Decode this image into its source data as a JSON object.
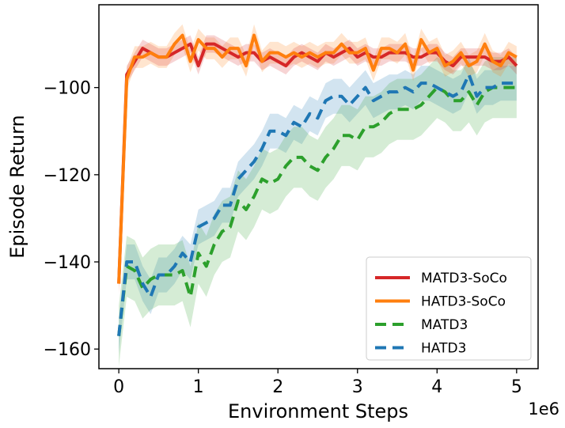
{
  "chart_data": {
    "type": "line",
    "title": "",
    "xlabel": "Environment Steps",
    "ylabel": "Episode Return",
    "x_offset_label": "1e6",
    "xlim": [
      -0.25,
      5.27
    ],
    "ylim": [
      -164.5,
      -81
    ],
    "xticks": [
      0,
      1,
      2,
      3,
      4,
      5
    ],
    "xtick_labels": [
      "0",
      "1",
      "2",
      "3",
      "4",
      "5"
    ],
    "yticks": [
      -160,
      -140,
      -120,
      -100
    ],
    "ytick_labels": [
      "−160",
      "−140",
      "−120",
      "−100"
    ],
    "grid": false,
    "legend_position": "lower-right",
    "series": [
      {
        "name": "MATD3-SoCo",
        "color": "#d62728",
        "style": "solid",
        "x": [
          0,
          0.1,
          0.2,
          0.3,
          0.4,
          0.5,
          0.6,
          0.7,
          0.8,
          0.9,
          1.0,
          1.1,
          1.2,
          1.3,
          1.4,
          1.5,
          1.6,
          1.7,
          1.8,
          1.9,
          2.0,
          2.1,
          2.2,
          2.3,
          2.4,
          2.5,
          2.6,
          2.7,
          2.8,
          2.9,
          3.0,
          3.1,
          3.2,
          3.3,
          3.4,
          3.5,
          3.6,
          3.7,
          3.8,
          3.9,
          4.0,
          4.1,
          4.2,
          4.3,
          4.4,
          4.5,
          4.6,
          4.7,
          4.8,
          4.9,
          5.0
        ],
        "y": [
          -145,
          -97,
          -94,
          -91,
          -92,
          -93,
          -93,
          -92,
          -91,
          -90,
          -95,
          -90,
          -90,
          -91,
          -92,
          -93,
          -92,
          -92,
          -94,
          -93,
          -94,
          -95,
          -93,
          -92,
          -93,
          -94,
          -92,
          -93,
          -92,
          -91,
          -93,
          -92,
          -93,
          -93,
          -92,
          -92,
          -92,
          -93,
          -93,
          -92,
          -92,
          -94,
          -95,
          -93,
          -93,
          -93,
          -93,
          -94,
          -94,
          -93,
          -95
        ],
        "band": 2.0
      },
      {
        "name": "HATD3-SoCo",
        "color": "#ff7f0e",
        "style": "solid",
        "x": [
          0,
          0.1,
          0.2,
          0.3,
          0.4,
          0.5,
          0.6,
          0.7,
          0.8,
          0.9,
          1.0,
          1.1,
          1.2,
          1.3,
          1.4,
          1.5,
          1.6,
          1.7,
          1.8,
          1.9,
          2.0,
          2.1,
          2.2,
          2.3,
          2.4,
          2.5,
          2.6,
          2.7,
          2.8,
          2.9,
          3.0,
          3.1,
          3.2,
          3.3,
          3.4,
          3.5,
          3.6,
          3.7,
          3.8,
          3.9,
          4.0,
          4.1,
          4.2,
          4.3,
          4.4,
          4.5,
          4.6,
          4.7,
          4.8,
          4.9,
          5.0
        ],
        "y": [
          -145,
          -98,
          -93,
          -93,
          -92,
          -93,
          -93,
          -90,
          -88,
          -94,
          -89,
          -91,
          -91,
          -93,
          -91,
          -91,
          -95,
          -88,
          -94,
          -92,
          -92,
          -93,
          -92,
          -93,
          -92,
          -93,
          -92,
          -92,
          -90,
          -92,
          -92,
          -91,
          -96,
          -91,
          -91,
          -92,
          -90,
          -96,
          -89,
          -92,
          -91,
          -95,
          -94,
          -92,
          -95,
          -94,
          -90,
          -94,
          -95,
          -92,
          -93
        ],
        "band": 2.5
      },
      {
        "name": "MATD3",
        "color": "#2ca02c",
        "style": "dashed",
        "x": [
          0,
          0.1,
          0.2,
          0.3,
          0.4,
          0.5,
          0.6,
          0.7,
          0.8,
          0.9,
          1.0,
          1.1,
          1.2,
          1.3,
          1.4,
          1.5,
          1.6,
          1.7,
          1.8,
          1.9,
          2.0,
          2.1,
          2.2,
          2.3,
          2.4,
          2.5,
          2.6,
          2.7,
          2.8,
          2.9,
          3.0,
          3.1,
          3.2,
          3.3,
          3.4,
          3.5,
          3.6,
          3.7,
          3.8,
          3.9,
          4.0,
          4.1,
          4.2,
          4.3,
          4.4,
          4.5,
          4.6,
          4.7,
          4.8,
          4.9,
          5.0
        ],
        "y": [
          -157,
          -141,
          -142,
          -146,
          -144,
          -143,
          -143,
          -143,
          -142,
          -148,
          -138,
          -141,
          -136,
          -133,
          -132,
          -126,
          -128,
          -125,
          -121,
          -122,
          -121,
          -118,
          -116,
          -116,
          -118,
          -119,
          -116,
          -114,
          -111,
          -111,
          -112,
          -109,
          -109,
          -108,
          -106,
          -105,
          -105,
          -105,
          -104,
          -102,
          -100,
          -101,
          -103,
          -103,
          -101,
          -104,
          -101,
          -100,
          -100,
          -100,
          -100
        ],
        "band": 7
      },
      {
        "name": "HATD3",
        "color": "#1f77b4",
        "style": "dashed",
        "x": [
          0,
          0.1,
          0.2,
          0.3,
          0.4,
          0.5,
          0.6,
          0.7,
          0.8,
          0.9,
          1.0,
          1.1,
          1.2,
          1.3,
          1.4,
          1.5,
          1.6,
          1.7,
          1.8,
          1.9,
          2.0,
          2.1,
          2.2,
          2.3,
          2.4,
          2.5,
          2.6,
          2.7,
          2.8,
          2.9,
          3.0,
          3.1,
          3.2,
          3.3,
          3.4,
          3.5,
          3.6,
          3.7,
          3.8,
          3.9,
          4.0,
          4.1,
          4.2,
          4.3,
          4.4,
          4.5,
          4.6,
          4.7,
          4.8,
          4.9,
          5.0
        ],
        "y": [
          -157,
          -140,
          -140,
          -145,
          -148,
          -143,
          -143,
          -141,
          -138,
          -140,
          -132,
          -131,
          -130,
          -127,
          -127,
          -121,
          -119,
          -117,
          -114,
          -110,
          -110,
          -111,
          -108,
          -109,
          -106,
          -107,
          -103,
          -102,
          -102,
          -104,
          -102,
          -100,
          -103,
          -102,
          -101,
          -101,
          -100,
          -101,
          -99,
          -99,
          -100,
          -101,
          -102,
          -101,
          -97,
          -102,
          -100,
          -100,
          -99,
          -99,
          -99
        ],
        "band": 4
      }
    ]
  }
}
